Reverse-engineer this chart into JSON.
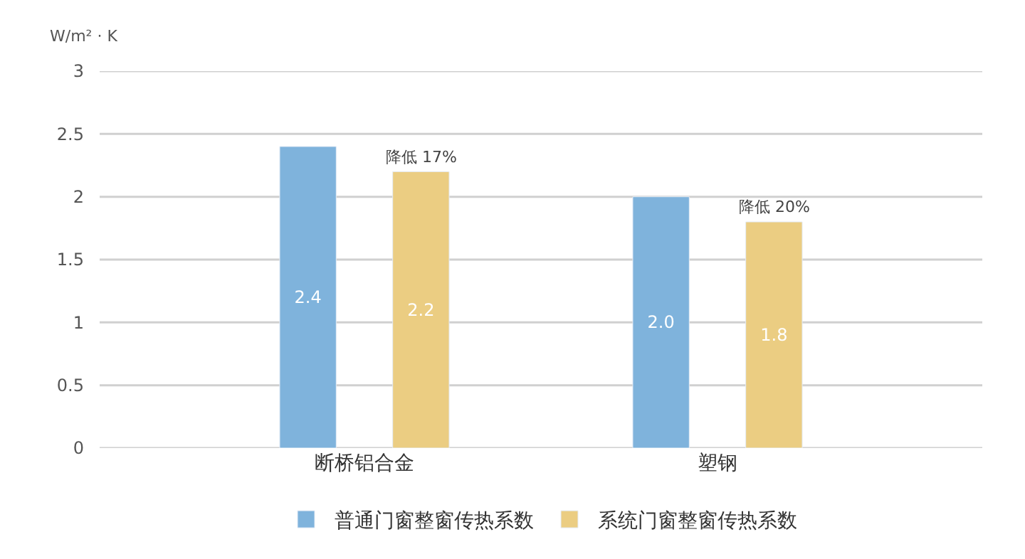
{
  "chart_data": {
    "type": "bar",
    "ylabel": "W/m² · K",
    "categories": [
      "断桥铝合金",
      "塑钢"
    ],
    "series": [
      {
        "name": "普通门窗整窗传热系数",
        "color": "#7fb3dc",
        "values": [
          2.4,
          2.0
        ],
        "value_labels": [
          "2.4",
          "2.0"
        ]
      },
      {
        "name": "系统门窗整窗传热系数",
        "color": "#ebcd82",
        "values": [
          2.2,
          1.8
        ],
        "value_labels": [
          "2.2",
          "1.8"
        ]
      }
    ],
    "annotations": [
      "降低 17%",
      "降低 20%"
    ],
    "ylim": [
      0,
      3
    ],
    "yticks": [
      0,
      0.5,
      1,
      1.5,
      2,
      2.5,
      3
    ],
    "grid": "y",
    "legend": "bottom"
  }
}
